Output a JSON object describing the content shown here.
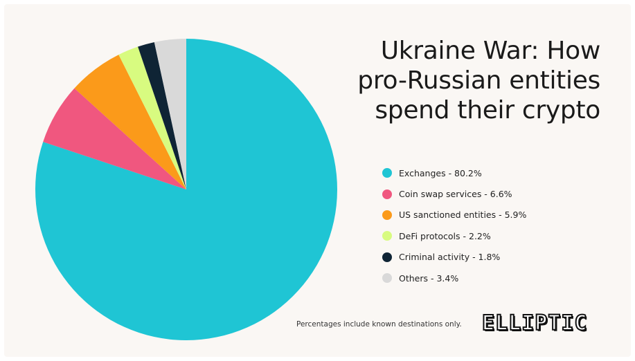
{
  "title_lines": [
    "Ukraine War: How",
    "pro-Russian entities",
    "spend their crypto"
  ],
  "chart_data": {
    "type": "pie",
    "title": "Ukraine War: How pro-Russian entities spend their crypto",
    "slices": [
      {
        "label": "Exchanges - 80.2%",
        "value": 80.2,
        "color": "#1fc5d4"
      },
      {
        "label": "Coin swap services - 6.6%",
        "value": 6.6,
        "color": "#f0577f"
      },
      {
        "label": "US sanctioned entities - 5.9%",
        "value": 5.9,
        "color": "#fb9a1a"
      },
      {
        "label": "DeFi protocols - 2.2%",
        "value": 2.2,
        "color": "#d8fb80"
      },
      {
        "label": "Criminal activity - 1.8%",
        "value": 1.8,
        "color": "#0f2435"
      },
      {
        "label": "Others - 3.4%",
        "value": 3.4,
        "color": "#d9d9d9"
      }
    ],
    "legend_position": "right"
  },
  "footnote": "Percentages include known destinations only.",
  "logo_text": "ELLIPTIC"
}
